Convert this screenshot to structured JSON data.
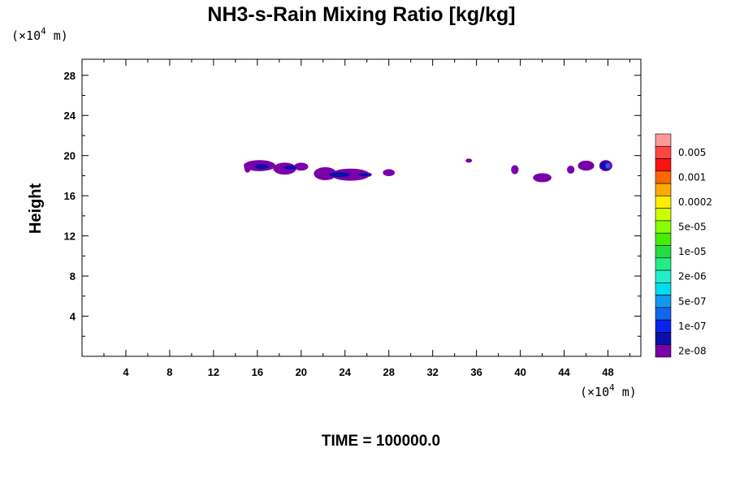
{
  "chart_data": {
    "type": "heatmap",
    "title": "NH3-s-Rain Mixing Ratio [kg/kg]",
    "ylabel": "Height",
    "x_unit": {
      "prefix": "(×10",
      "exp": "4",
      "suffix": " m)"
    },
    "y_unit": {
      "prefix": "(×10",
      "exp": "4",
      "suffix": " m)"
    },
    "xlim": [
      0,
      51
    ],
    "ylim": [
      0,
      29.6
    ],
    "xticks": [
      4,
      8,
      12,
      16,
      20,
      24,
      28,
      32,
      36,
      40,
      44,
      48
    ],
    "yticks": [
      4,
      8,
      12,
      16,
      20,
      24,
      28
    ],
    "time_label": "TIME = 100000.0",
    "colorbar": {
      "colors": [
        "#ff9999",
        "#ff4444",
        "#ff1010",
        "#ff6600",
        "#ffaa00",
        "#ffee00",
        "#ccff00",
        "#88ff00",
        "#44ee00",
        "#22dd44",
        "#22ee88",
        "#22eecc",
        "#00ddee",
        "#1199ee",
        "#1166ee",
        "#0a22ee",
        "#0a10aa",
        "#7a00aa"
      ],
      "labels": [
        "0.005",
        "0.001",
        "0.0002",
        "5e-05",
        "1e-05",
        "2e-06",
        "5e-07",
        "1e-07",
        "2e-08"
      ]
    },
    "cells": [
      {
        "x": 15.1,
        "y": 18.8,
        "w": 0.5,
        "h": 0.9,
        "level": "2e-08"
      },
      {
        "x": 16.2,
        "y": 19.0,
        "w": 2.8,
        "h": 1.0,
        "level": "2e-08"
      },
      {
        "x": 18.5,
        "y": 18.7,
        "w": 2.0,
        "h": 1.1,
        "level": "2e-08"
      },
      {
        "x": 20.0,
        "y": 18.9,
        "w": 1.2,
        "h": 0.7,
        "level": "2e-08"
      },
      {
        "x": 22.2,
        "y": 18.2,
        "w": 2.0,
        "h": 1.2,
        "level": "2e-08"
      },
      {
        "x": 24.5,
        "y": 18.1,
        "w": 3.4,
        "h": 1.1,
        "level": "2e-08"
      },
      {
        "x": 28.0,
        "y": 18.3,
        "w": 1.0,
        "h": 0.6,
        "level": "2e-08"
      },
      {
        "x": 16.4,
        "y": 18.9,
        "w": 1.4,
        "h": 0.6,
        "level": "1e-07"
      },
      {
        "x": 19.0,
        "y": 18.8,
        "w": 1.2,
        "h": 0.5,
        "level": "1e-07"
      },
      {
        "x": 23.5,
        "y": 18.1,
        "w": 2.0,
        "h": 0.6,
        "level": "1e-07"
      },
      {
        "x": 25.8,
        "y": 18.1,
        "w": 1.2,
        "h": 0.4,
        "level": "1e-07"
      },
      {
        "x": 35.3,
        "y": 19.5,
        "w": 0.5,
        "h": 0.3,
        "level": "2e-08"
      },
      {
        "x": 39.5,
        "y": 18.6,
        "w": 0.6,
        "h": 0.8,
        "level": "2e-08"
      },
      {
        "x": 42.0,
        "y": 17.8,
        "w": 1.6,
        "h": 0.8,
        "level": "2e-08"
      },
      {
        "x": 44.6,
        "y": 18.6,
        "w": 0.6,
        "h": 0.7,
        "level": "2e-08"
      },
      {
        "x": 46.0,
        "y": 19.0,
        "w": 1.4,
        "h": 0.9,
        "level": "2e-08"
      },
      {
        "x": 47.8,
        "y": 19.0,
        "w": 1.1,
        "h": 1.0,
        "level": "1e-07"
      },
      {
        "x": 48.0,
        "y": 19.0,
        "w": 0.5,
        "h": 0.6,
        "level": "5e-07"
      }
    ]
  }
}
